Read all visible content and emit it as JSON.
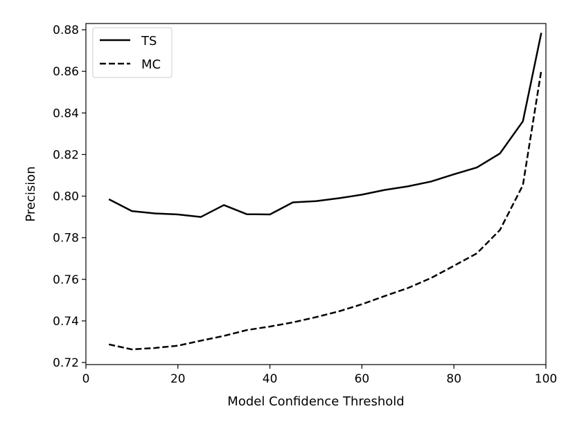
{
  "chart_data": {
    "type": "line",
    "title": "",
    "xlabel": "Model Confidence Threshold",
    "ylabel": "Precision",
    "xlim": [
      0,
      100
    ],
    "ylim": [
      0.719,
      0.883
    ],
    "xticks": [
      0,
      20,
      40,
      60,
      80,
      100
    ],
    "yticks": [
      0.72,
      0.74,
      0.76,
      0.78,
      0.8,
      0.82,
      0.84,
      0.86,
      0.88
    ],
    "xtick_labels": [
      "0",
      "20",
      "40",
      "60",
      "80",
      "100"
    ],
    "ytick_labels": [
      "0.72",
      "0.74",
      "0.76",
      "0.78",
      "0.80",
      "0.82",
      "0.84",
      "0.86",
      "0.88"
    ],
    "grid": false,
    "legend_position": "top-left",
    "series": [
      {
        "name": "TS",
        "style": "solid",
        "color": "#000000",
        "x": [
          5,
          10,
          15,
          20,
          25,
          30,
          35,
          40,
          45,
          50,
          55,
          60,
          65,
          70,
          75,
          80,
          85,
          90,
          95,
          99
        ],
        "y": [
          0.7985,
          0.7928,
          0.7917,
          0.7912,
          0.79,
          0.7957,
          0.7913,
          0.7912,
          0.797,
          0.7976,
          0.799,
          0.8007,
          0.803,
          0.8047,
          0.807,
          0.8105,
          0.8138,
          0.8205,
          0.836,
          0.8785
        ]
      },
      {
        "name": "MC",
        "style": "dashed",
        "color": "#000000",
        "x": [
          5,
          10,
          15,
          20,
          25,
          30,
          35,
          40,
          45,
          50,
          55,
          60,
          65,
          70,
          75,
          80,
          85,
          90,
          95,
          99
        ],
        "y": [
          0.7287,
          0.7263,
          0.727,
          0.7281,
          0.7305,
          0.7328,
          0.7356,
          0.7373,
          0.7393,
          0.7418,
          0.7446,
          0.748,
          0.752,
          0.7558,
          0.7606,
          0.7665,
          0.7725,
          0.7837,
          0.8053,
          0.8605
        ]
      }
    ]
  }
}
